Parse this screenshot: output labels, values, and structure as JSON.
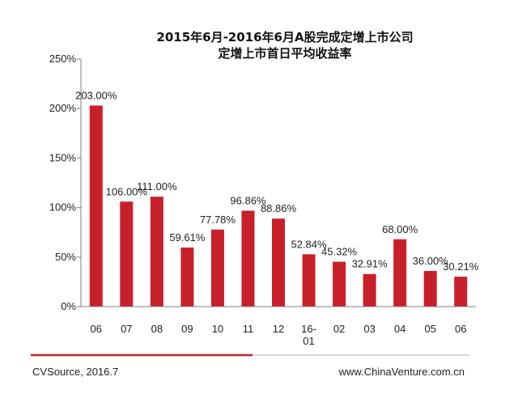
{
  "chart_data": {
    "type": "bar",
    "title": [
      "2015年6月-2016年6月A股完成定增上市公司",
      "定增上市首日平均收益率"
    ],
    "categories": [
      "06",
      "07",
      "08",
      "09",
      "10",
      "11",
      "12",
      "16-01",
      "02",
      "03",
      "04",
      "05",
      "06"
    ],
    "values": [
      203.0,
      106.0,
      111.0,
      59.61,
      77.78,
      96.86,
      88.86,
      52.84,
      45.32,
      32.91,
      68.0,
      36.0,
      30.21
    ],
    "data_labels": [
      "203.00%",
      "106.00%",
      "111.00%",
      "59.61%",
      "77.78%",
      "96.86%",
      "88.86%",
      "52.84%",
      "45.32%",
      "32.91%",
      "68.00%",
      "36.00%",
      "30.21%"
    ],
    "y_ticks": [
      "0%",
      "50%",
      "100%",
      "150%",
      "200%",
      "250%"
    ],
    "ylim": [
      0,
      250
    ],
    "xlabel": "",
    "ylabel": "",
    "grid": false,
    "legend": "none",
    "bar_color": "#c8202a"
  },
  "footer": {
    "source": "CVSource, 2016.7",
    "website": "www.ChinaVenture.com.cn"
  },
  "colors": {
    "accent_line": "#c8202a",
    "divider_line": "#d9d9d9"
  }
}
